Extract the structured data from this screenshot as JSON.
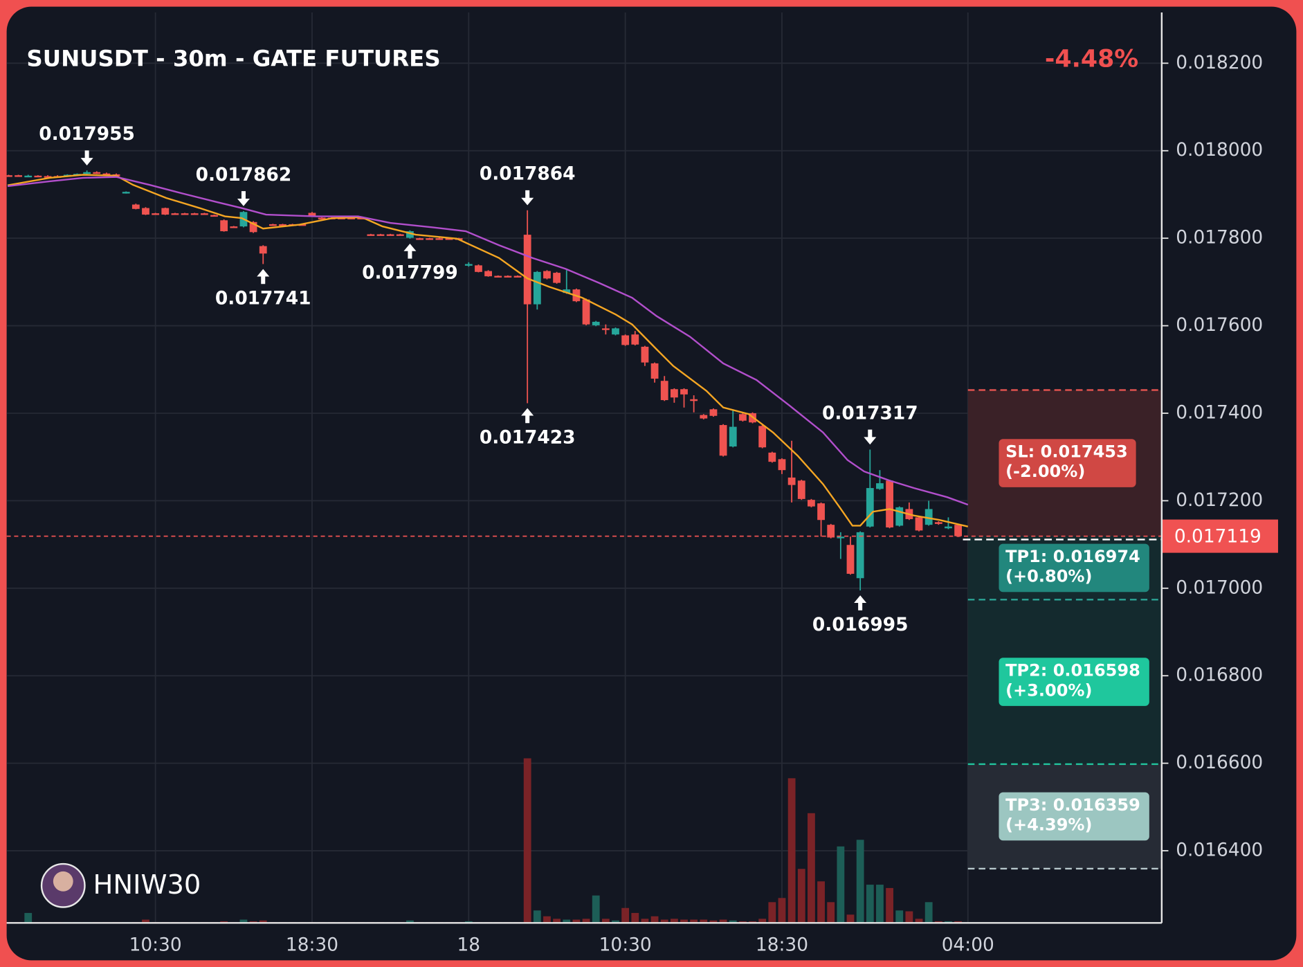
{
  "chart_data": {
    "type": "candlestick",
    "title": "SUNUSDT - 30m - GATE FUTURES",
    "change_label": "-4.48%",
    "watermark": "HNIW30",
    "up_color": "#26a69a",
    "down_color": "#ef5350",
    "volume_up_color": "#1d5e57",
    "volume_down_color": "#7b2327",
    "grid": true,
    "xlim": [
      -0.2,
      117.8
    ],
    "xticks": [
      {
        "value": 15,
        "label": "10:30"
      },
      {
        "value": 31,
        "label": "18:30"
      },
      {
        "value": 47,
        "label": "18"
      },
      {
        "value": 63,
        "label": "10:30"
      },
      {
        "value": 79,
        "label": "18:30"
      },
      {
        "value": 98,
        "label": "04:00"
      }
    ],
    "ylim": [
      0.016235,
      0.018316
    ],
    "yticks": [
      {
        "value": 0.0182,
        "label": "0.018200"
      },
      {
        "value": 0.018,
        "label": "0.018000"
      },
      {
        "value": 0.0178,
        "label": "0.017800"
      },
      {
        "value": 0.0176,
        "label": "0.017600"
      },
      {
        "value": 0.0174,
        "label": "0.017400"
      },
      {
        "value": 0.0172,
        "label": "0.017200"
      },
      {
        "value": 0.017,
        "label": "0.017000"
      },
      {
        "value": 0.0168,
        "label": "0.016800"
      },
      {
        "value": 0.0166,
        "label": "0.016600"
      },
      {
        "value": 0.0164,
        "label": "0.016400"
      }
    ],
    "open": [
      0.017944,
      0.017944,
      0.017942,
      0.017943,
      0.017942,
      0.017942,
      0.017941,
      0.017945,
      0.017947,
      0.017951,
      0.017948,
      0.017946,
      0.017903,
      0.017877,
      0.017869,
      0.017857,
      0.017869,
      0.017857,
      0.017857,
      0.017857,
      0.017857,
      0.017853,
      0.017841,
      0.017827,
      0.017827,
      0.017837,
      0.017782,
      0.017832,
      0.017832,
      0.017832,
      0.017832,
      0.017858,
      0.017847,
      0.017847,
      0.017847,
      0.017847,
      0.017847,
      0.017809,
      0.017809,
      0.017809,
      0.017809,
      0.017801,
      0.0178,
      0.0178,
      0.0178,
      0.0178,
      0.0178,
      0.017738,
      0.017738,
      0.017725,
      0.017714,
      0.017714,
      0.017714,
      0.017808,
      0.017649,
      0.017725,
      0.017721,
      0.017675,
      0.017683,
      0.01766,
      0.017601,
      0.017594,
      0.01758,
      0.017578,
      0.01758,
      0.017552,
      0.017514,
      0.017474,
      0.017455,
      0.017455,
      0.017432,
      0.017396,
      0.017409,
      0.017373,
      0.017324,
      0.017398,
      0.0174,
      0.017371,
      0.01731,
      0.017295,
      0.017253,
      0.017246,
      0.017202,
      0.017194,
      0.017145,
      0.017116,
      0.017099,
      0.017023,
      0.017141,
      0.017227,
      0.017246,
      0.017143,
      0.017181,
      0.017162,
      0.017145,
      0.017151,
      0.017137,
      0.017145
    ],
    "high": [
      0.017945,
      0.017945,
      0.017945,
      0.017944,
      0.017944,
      0.017944,
      0.017946,
      0.017948,
      0.017955,
      0.017953,
      0.01795,
      0.017948,
      0.017907,
      0.017879,
      0.017871,
      0.017858,
      0.01787,
      0.017858,
      0.017858,
      0.017858,
      0.017858,
      0.017854,
      0.017843,
      0.017828,
      0.017862,
      0.017839,
      0.017784,
      0.017833,
      0.017833,
      0.017833,
      0.017833,
      0.01786,
      0.017848,
      0.017848,
      0.017848,
      0.017848,
      0.017848,
      0.01781,
      0.01781,
      0.01781,
      0.01781,
      0.017818,
      0.017801,
      0.017801,
      0.017801,
      0.017801,
      0.017801,
      0.017745,
      0.01774,
      0.017727,
      0.017715,
      0.017715,
      0.017715,
      0.017864,
      0.017725,
      0.017727,
      0.017723,
      0.017727,
      0.017685,
      0.017662,
      0.017611,
      0.017603,
      0.017596,
      0.01758,
      0.017588,
      0.017554,
      0.017516,
      0.017485,
      0.017457,
      0.017457,
      0.017441,
      0.017398,
      0.017411,
      0.017375,
      0.017409,
      0.0174,
      0.017402,
      0.017373,
      0.017312,
      0.017297,
      0.017337,
      0.017248,
      0.017204,
      0.017196,
      0.017147,
      0.017128,
      0.017118,
      0.01713,
      0.017317,
      0.01727,
      0.017248,
      0.017187,
      0.017196,
      0.017164,
      0.0172,
      0.017153,
      0.017162,
      0.017147
    ],
    "low": [
      0.017942,
      0.017942,
      0.017941,
      0.017941,
      0.01794,
      0.01794,
      0.01794,
      0.017943,
      0.017945,
      0.017947,
      0.017945,
      0.017943,
      0.017902,
      0.017866,
      0.017853,
      0.017855,
      0.017853,
      0.017855,
      0.017855,
      0.017855,
      0.017855,
      0.017851,
      0.017815,
      0.017825,
      0.017825,
      0.017812,
      0.017741,
      0.01783,
      0.01783,
      0.01783,
      0.01783,
      0.017849,
      0.017845,
      0.017845,
      0.017845,
      0.017845,
      0.017845,
      0.017807,
      0.017807,
      0.017807,
      0.017807,
      0.017799,
      0.017798,
      0.017798,
      0.017798,
      0.017798,
      0.017798,
      0.017735,
      0.017722,
      0.017712,
      0.017712,
      0.017712,
      0.017712,
      0.017423,
      0.017637,
      0.017706,
      0.017696,
      0.017673,
      0.017654,
      0.017601,
      0.017599,
      0.01758,
      0.017578,
      0.017554,
      0.017555,
      0.017508,
      0.01747,
      0.017428,
      0.017424,
      0.017413,
      0.017402,
      0.017386,
      0.017392,
      0.017301,
      0.017322,
      0.017381,
      0.017377,
      0.01732,
      0.017287,
      0.017261,
      0.017196,
      0.017202,
      0.017185,
      0.017118,
      0.017114,
      0.017067,
      0.017031,
      0.016995,
      0.017139,
      0.017225,
      0.017137,
      0.017141,
      0.017156,
      0.01713,
      0.017143,
      0.017145,
      0.017135,
      0.017117
    ],
    "close": [
      0.017943,
      0.017943,
      0.017943,
      0.017942,
      0.017941,
      0.017941,
      0.017945,
      0.017947,
      0.017951,
      0.017948,
      0.017946,
      0.017945,
      0.017906,
      0.017867,
      0.017854,
      0.017856,
      0.017854,
      0.017856,
      0.017856,
      0.017856,
      0.017856,
      0.017852,
      0.017816,
      0.017826,
      0.01786,
      0.017814,
      0.017765,
      0.017831,
      0.017831,
      0.017831,
      0.017831,
      0.01785,
      0.017846,
      0.017846,
      0.017846,
      0.017846,
      0.017846,
      0.017808,
      0.017808,
      0.017808,
      0.017808,
      0.017816,
      0.017799,
      0.017799,
      0.017799,
      0.017799,
      0.017799,
      0.017741,
      0.017723,
      0.017713,
      0.017713,
      0.017713,
      0.017713,
      0.017649,
      0.017723,
      0.017708,
      0.017698,
      0.017683,
      0.017656,
      0.017603,
      0.017609,
      0.017591,
      0.017594,
      0.017556,
      0.017557,
      0.017516,
      0.017479,
      0.01743,
      0.017436,
      0.017443,
      0.017428,
      0.017388,
      0.017394,
      0.017303,
      0.017369,
      0.017383,
      0.017379,
      0.017322,
      0.017289,
      0.01727,
      0.017236,
      0.017204,
      0.017187,
      0.017156,
      0.017116,
      0.017118,
      0.017033,
      0.017128,
      0.017229,
      0.01724,
      0.017139,
      0.017185,
      0.017158,
      0.017132,
      0.017181,
      0.017147,
      0.017141,
      0.017119
    ],
    "volume": [
      1,
      1,
      12,
      1,
      1,
      1,
      1,
      1,
      1,
      1,
      1,
      1,
      1,
      1,
      4,
      1,
      1,
      1,
      1,
      1,
      1,
      1,
      2,
      1,
      4,
      2,
      3,
      1,
      1,
      1,
      1,
      1,
      1,
      1,
      1,
      1,
      1,
      1,
      1,
      1,
      1,
      3,
      1,
      1,
      1,
      1,
      1,
      2,
      1,
      1,
      1,
      1,
      1,
      198,
      15,
      8,
      5,
      4,
      4,
      5,
      33,
      5,
      3,
      18,
      12,
      5,
      8,
      4,
      5,
      4,
      4,
      4,
      3,
      4,
      3,
      2,
      2,
      5,
      25,
      30,
      174,
      65,
      132,
      50,
      25,
      92,
      10,
      100,
      46,
      46,
      42,
      15,
      14,
      5,
      25,
      2,
      2,
      2
    ],
    "moving_averages": [
      {
        "color": "#f5a623",
        "x": [
          -0.1,
          4.2,
          7.6,
          11.0,
          12.7,
          16.1,
          19.5,
          22.1,
          23.8,
          26.0,
          29.7,
          33.1,
          36.1,
          38.2,
          41.6,
          45.8,
          50.1,
          53.0,
          55.2,
          58.6,
          62.0,
          63.7,
          66.2,
          67.9,
          71.3,
          73.0,
          75.6,
          78.1,
          80.6,
          83.2,
          84.9,
          86.2,
          87.0,
          88.3,
          90.0,
          92.5,
          95.1,
          98.0
        ],
        "values": [
          0.017921,
          0.017938,
          0.017945,
          0.017943,
          0.017922,
          0.017892,
          0.017869,
          0.01785,
          0.017846,
          0.017822,
          0.017831,
          0.017846,
          0.017848,
          0.017827,
          0.017808,
          0.017799,
          0.017755,
          0.017708,
          0.017689,
          0.017664,
          0.017626,
          0.017603,
          0.017546,
          0.017508,
          0.017451,
          0.017413,
          0.017398,
          0.017356,
          0.017303,
          0.017238,
          0.017185,
          0.017143,
          0.017143,
          0.017175,
          0.017181,
          0.017166,
          0.017156,
          0.017141
        ]
      },
      {
        "color": "#b24fcc",
        "x": [
          -0.1,
          4.2,
          7.6,
          11.0,
          14.4,
          17.8,
          21.2,
          23.8,
          26.3,
          31.4,
          35.7,
          39.0,
          43.3,
          46.7,
          50.1,
          53.5,
          56.9,
          60.3,
          63.7,
          66.2,
          69.6,
          73.0,
          76.4,
          79.8,
          83.2,
          85.7,
          87.4,
          90.0,
          92.5,
          95.9,
          98.0
        ],
        "values": [
          0.017919,
          0.01793,
          0.017938,
          0.01794,
          0.017922,
          0.017902,
          0.017883,
          0.017869,
          0.017854,
          0.01785,
          0.01785,
          0.017835,
          0.017825,
          0.017816,
          0.017784,
          0.017755,
          0.01773,
          0.017698,
          0.017664,
          0.017622,
          0.017575,
          0.017514,
          0.017476,
          0.017417,
          0.017356,
          0.017293,
          0.017267,
          0.017246,
          0.017229,
          0.017208,
          0.017191
        ]
      }
    ],
    "annotations": [
      {
        "text": "0.017955",
        "x": 8,
        "value": 0.017955,
        "side": "above"
      },
      {
        "text": "0.017862",
        "x": 24,
        "value": 0.017862,
        "side": "above"
      },
      {
        "text": "0.017741",
        "x": 26,
        "value": 0.017741,
        "side": "below"
      },
      {
        "text": "0.017799",
        "x": 41,
        "value": 0.017799,
        "side": "below"
      },
      {
        "text": "0.017864",
        "x": 53,
        "value": 0.017864,
        "side": "above"
      },
      {
        "text": "0.017423",
        "x": 53,
        "value": 0.017423,
        "side": "below"
      },
      {
        "text": "0.017317",
        "x": 88,
        "value": 0.017317,
        "side": "above"
      },
      {
        "text": "0.016995",
        "x": 87,
        "value": 0.016995,
        "side": "below"
      }
    ],
    "current_price": {
      "value": 0.017119,
      "label": "0.017119",
      "color": "#f05252"
    },
    "levels": [
      {
        "label": "SL: 0.017453",
        "pct": "(-2.00%)",
        "value": 0.017453,
        "color": "#d04844",
        "line_color": "#e0524f",
        "zone_color": "#3a2127"
      },
      {
        "label": "TP1: 0.016974",
        "pct": "(+0.80%)",
        "value": 0.016974,
        "color": "#22877d",
        "line_color": "#2a9d8f",
        "zone_color": "#142a2e"
      },
      {
        "label": "TP2: 0.016598",
        "pct": "(+3.00%)",
        "value": 0.016598,
        "color": "#1fc79d",
        "line_color": "#22c59e",
        "zone_color": "#142a2e"
      },
      {
        "label": "TP3: 0.016359",
        "pct": "(+4.39%)",
        "value": 0.016359,
        "color": "#9cc6c1",
        "line_color": "#b8c8cc",
        "zone_color": "#262b35"
      }
    ]
  }
}
